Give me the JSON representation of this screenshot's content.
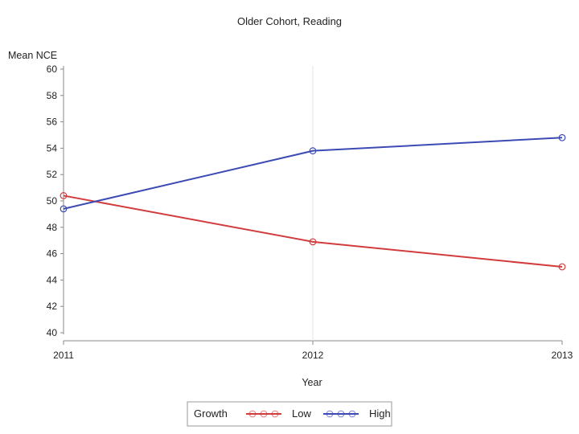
{
  "chart_data": {
    "type": "line",
    "title": "Older Cohort, Reading",
    "xlabel": "Year",
    "ylabel": "Mean NCE",
    "x": [
      "2011",
      "2012",
      "2013"
    ],
    "ylim": [
      40,
      60
    ],
    "yticks": [
      "60",
      "58",
      "56",
      "54",
      "52",
      "50",
      "48",
      "46",
      "44",
      "42",
      "40"
    ],
    "grid": false,
    "legend": {
      "title": "Growth",
      "placement": "bottom-center"
    },
    "series": [
      {
        "name": "Low",
        "color": "#d23c3c",
        "values": [
          50.4,
          46.9,
          45.0
        ]
      },
      {
        "name": "High",
        "color": "#3c4ab4",
        "values": [
          49.4,
          53.8,
          54.8
        ]
      }
    ]
  }
}
